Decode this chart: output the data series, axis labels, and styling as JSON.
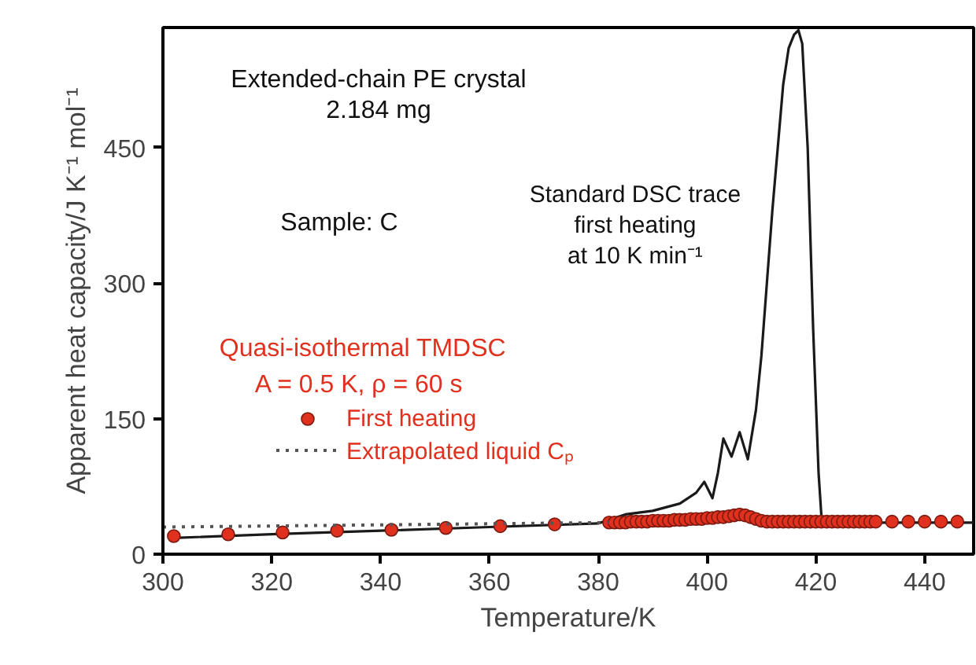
{
  "chart_data": {
    "type": "line",
    "xlabel": "Temperature/K",
    "ylabel": "Apparent heat capacity/J K⁻¹ mol⁻¹",
    "legend_title": "Quasi-isothermal TMDSC\nA = 0.5 K,  ρ = 60 s",
    "annotations": [
      "Extended-chain PE crystal\n2.184 mg",
      "Sample: C",
      "Standard DSC trace\nfirst heating\nat 10 K min⁻¹"
    ],
    "xlim": [
      300,
      449
    ],
    "xticks": [
      300,
      320,
      340,
      360,
      380,
      400,
      420,
      440
    ],
    "ylim": [
      0,
      583
    ],
    "yticks": [
      0,
      150,
      300,
      450
    ],
    "grid": false,
    "legend": "left",
    "series": [
      {
        "color": "#1a1a1a",
        "line_style": "solid",
        "x": [
          302,
          320,
          340,
          360,
          380,
          385,
          390,
          395,
          398,
          399.5,
          401,
          402,
          403,
          404.5,
          406,
          407.5,
          409,
          410,
          411,
          412,
          413,
          414,
          415,
          416,
          416.8,
          417.5,
          418.5,
          419.5,
          420.5,
          421.1,
          425,
          435,
          449
        ],
        "values": [
          18,
          22,
          26,
          30,
          34,
          44,
          48,
          56,
          68,
          80,
          62,
          90,
          128,
          108,
          135,
          105,
          160,
          220,
          300,
          380,
          450,
          520,
          560,
          575,
          580,
          565,
          450,
          250,
          90,
          35,
          35,
          35,
          35
        ]
      },
      {
        "type": "scatter",
        "name": "First heating",
        "color": "#e0301e",
        "marker": "circle",
        "x": [
          302,
          312,
          322,
          332,
          342,
          352,
          362,
          372,
          382,
          383,
          384,
          385,
          386,
          387,
          388,
          389,
          390,
          391,
          392,
          393,
          394,
          395,
          396,
          397,
          398,
          399,
          400,
          401,
          402,
          403,
          404,
          405,
          406,
          407,
          408,
          409,
          410,
          411,
          412,
          413,
          414,
          415,
          416,
          417,
          418,
          419,
          420,
          421,
          422,
          423,
          424,
          425,
          426,
          427,
          428,
          429,
          430,
          431,
          434,
          437,
          440,
          443,
          446
        ],
        "values": [
          20,
          22,
          24,
          26,
          27,
          29,
          31,
          33,
          35,
          35,
          35,
          35,
          36,
          36,
          36,
          36,
          37,
          37,
          37,
          37,
          38,
          38,
          38,
          39,
          39,
          39,
          40,
          40,
          41,
          41,
          42,
          43,
          44,
          43,
          41,
          39,
          37,
          36,
          36,
          36,
          36,
          36,
          36,
          36,
          36,
          36,
          36,
          36,
          36,
          36,
          36,
          36,
          36,
          36,
          36,
          36,
          36,
          36,
          36,
          36,
          36,
          36,
          36
        ]
      },
      {
        "name": "Extrapolated liquid Cₚ",
        "color": "#555555",
        "line_style": "dotted",
        "x": [
          300,
          382
        ],
        "values": [
          30,
          35
        ]
      }
    ]
  }
}
